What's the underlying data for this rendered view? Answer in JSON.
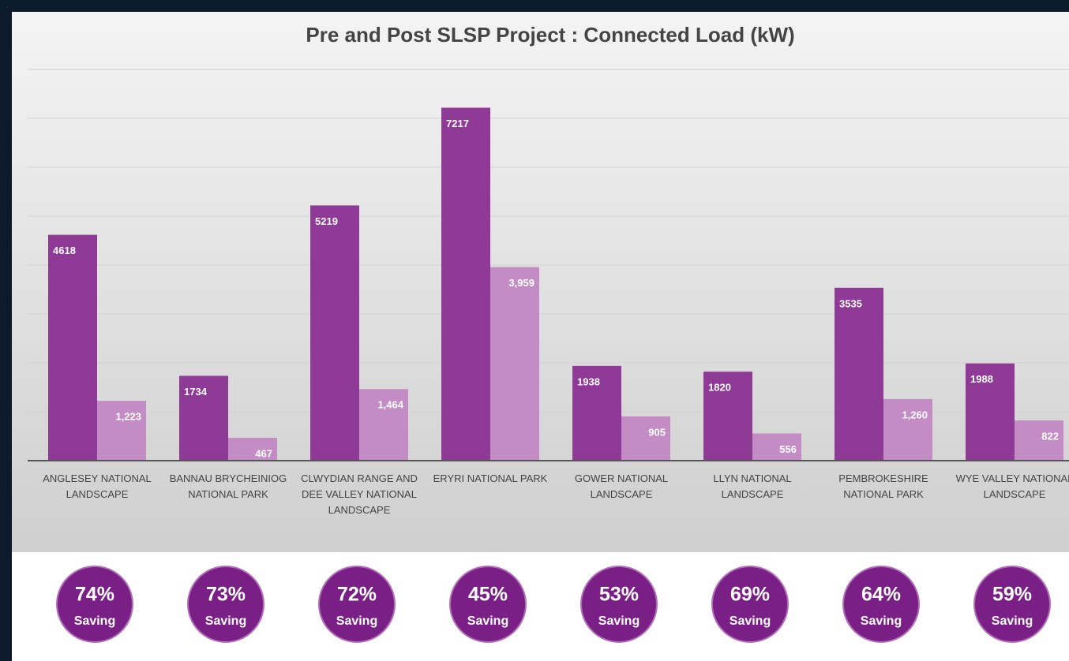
{
  "chart_data": {
    "type": "bar",
    "title": "Pre and Post SLSP Project : Connected Load (kW)",
    "categories": [
      "ANGLESEY NATIONAL LANDSCAPE",
      "BANNAU BRYCHEINIOG NATIONAL PARK",
      "CLWYDIAN RANGE AND DEE VALLEY NATIONAL LANDSCAPE",
      "ERYRI NATIONAL PARK",
      "GOWER NATIONAL LANDSCAPE",
      "LLYN NATIONAL LANDSCAPE",
      "PEMBROKESHIRE NATIONAL PARK",
      "WYE VALLEY NATIONAL LANDSCAPE"
    ],
    "series": [
      {
        "color": "#8e3a96",
        "values": [
          4618,
          1734,
          5219,
          7217,
          1938,
          1820,
          3535,
          1988
        ]
      },
      {
        "color": "#c48cc4",
        "values": [
          1223,
          467,
          1464,
          3959,
          905,
          556,
          1260,
          822
        ],
        "value_labels": [
          "1,223",
          "467",
          "1,464",
          "3,959",
          "905",
          "556",
          "1,260",
          "822"
        ]
      }
    ],
    "ylim": [
      0,
      8000
    ],
    "yticks": [
      0,
      1000,
      2000,
      3000,
      4000,
      5000,
      6000,
      7000,
      8000
    ],
    "grid": true,
    "savings": {
      "values": [
        74,
        73,
        72,
        45,
        53,
        69,
        64,
        59
      ],
      "value_labels": [
        "74%",
        "73%",
        "72%",
        "45%",
        "53%",
        "69%",
        "64%",
        "59%"
      ],
      "label": "Saving",
      "color": "#7a1f86"
    }
  }
}
